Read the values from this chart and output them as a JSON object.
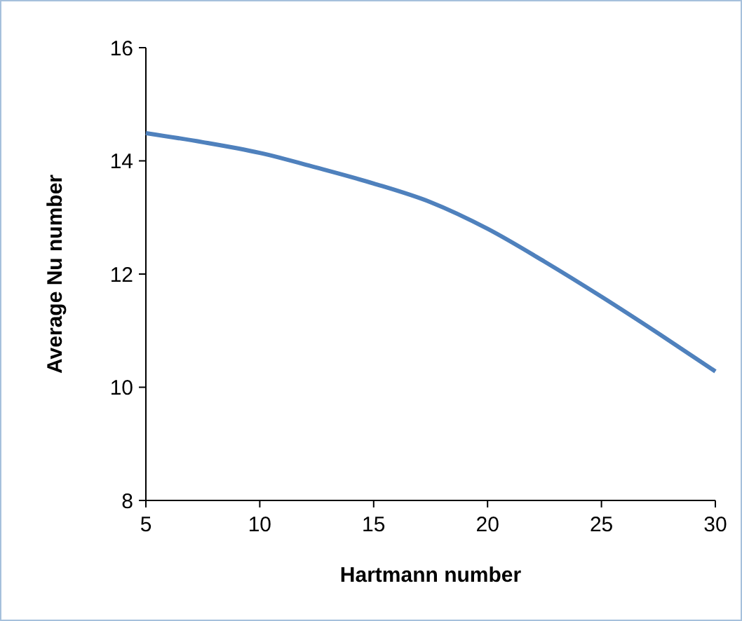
{
  "chart_data": {
    "type": "line",
    "xlabel": "Hartmann number",
    "ylabel": "Average Nu number",
    "x": [
      5,
      7.5,
      10,
      12.5,
      15,
      17.5,
      20,
      22.5,
      25,
      27.5,
      30
    ],
    "series": [
      {
        "color": "#4f81bd",
        "values": [
          14.49,
          14.33,
          14.14,
          13.88,
          13.6,
          13.27,
          12.8,
          12.22,
          11.6,
          10.95,
          10.28
        ]
      }
    ],
    "xlim": [
      5,
      30
    ],
    "xticks": [
      5,
      10,
      15,
      20,
      25,
      30
    ],
    "ylim": [
      8,
      16
    ],
    "yticks": [
      8,
      10,
      12,
      14,
      16
    ],
    "marker": "none",
    "line_style": "solid"
  }
}
